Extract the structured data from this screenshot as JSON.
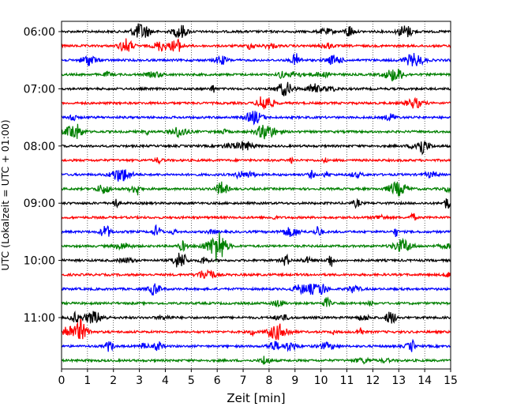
{
  "chart_data": {
    "type": "line",
    "title": "",
    "xlabel": "Zeit  [min]",
    "ylabel": "UTC (Lokalzeit = UTC + 01:00)",
    "xlim": [
      0,
      15
    ],
    "x_ticks": [
      0,
      1,
      2,
      3,
      4,
      5,
      6,
      7,
      8,
      9,
      10,
      11,
      12,
      13,
      14,
      15
    ],
    "y_tick_labels": [
      "06:00",
      "07:00",
      "08:00",
      "09:00",
      "10:00",
      "11:00"
    ],
    "grid": "vertical dotted",
    "legend": "none",
    "series_colors": [
      "#000000",
      "#ff0000",
      "#0000ff",
      "#008000"
    ],
    "traces": [
      {
        "start": "06:00",
        "color": "#000000"
      },
      {
        "start": "06:15",
        "color": "#ff0000"
      },
      {
        "start": "06:30",
        "color": "#0000ff"
      },
      {
        "start": "06:45",
        "color": "#008000"
      },
      {
        "start": "07:00",
        "color": "#000000"
      },
      {
        "start": "07:15",
        "color": "#ff0000"
      },
      {
        "start": "07:30",
        "color": "#0000ff"
      },
      {
        "start": "07:45",
        "color": "#008000"
      },
      {
        "start": "08:00",
        "color": "#000000"
      },
      {
        "start": "08:15",
        "color": "#ff0000"
      },
      {
        "start": "08:30",
        "color": "#0000ff"
      },
      {
        "start": "08:45",
        "color": "#008000"
      },
      {
        "start": "09:00",
        "color": "#000000"
      },
      {
        "start": "09:15",
        "color": "#ff0000"
      },
      {
        "start": "09:30",
        "color": "#0000ff"
      },
      {
        "start": "09:45",
        "color": "#008000"
      },
      {
        "start": "10:00",
        "color": "#000000"
      },
      {
        "start": "10:15",
        "color": "#ff0000"
      },
      {
        "start": "10:30",
        "color": "#0000ff"
      },
      {
        "start": "10:45",
        "color": "#008000"
      },
      {
        "start": "11:00",
        "color": "#000000"
      },
      {
        "start": "11:15",
        "color": "#ff0000"
      },
      {
        "start": "11:30",
        "color": "#0000ff"
      },
      {
        "start": "11:45",
        "color": "#008000"
      }
    ]
  }
}
